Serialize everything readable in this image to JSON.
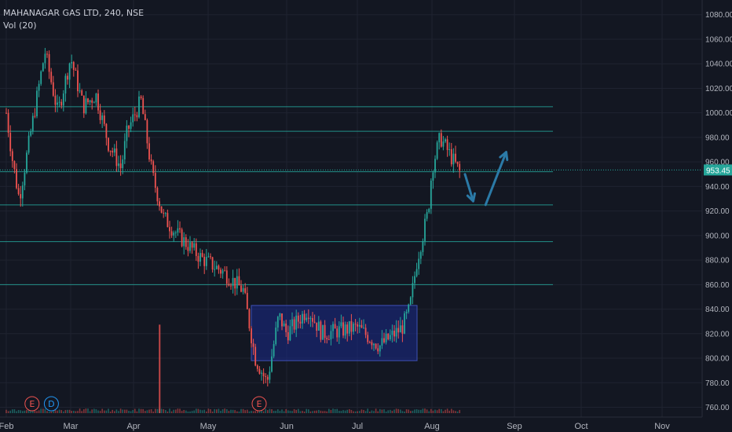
{
  "header": {
    "symbol": "MAHANAGAR GAS LTD, 240, NSE",
    "indicator": "Vol (20)"
  },
  "colors": {
    "background": "#131722",
    "grid": "#1f2330",
    "up": "#26a69a",
    "down": "#ef5350",
    "hline": "#26a69a",
    "box_fill": "#1a2a8a",
    "box_stroke": "#3f51b5",
    "arrow": "#2b7aa7",
    "axis_text": "#b2b5be",
    "price_badge": "#26a69a"
  },
  "chart_data": {
    "type": "candlestick",
    "title": "MAHANAGAR GAS LTD, 240, NSE",
    "xlabel": "",
    "ylabel": "",
    "ylim": [
      752,
      1092
    ],
    "x_ticks": [
      "Feb",
      "Mar",
      "Apr",
      "May",
      "Jun",
      "Jul",
      "Aug",
      "Sep",
      "Oct",
      "Nov"
    ],
    "y_ticks": [
      "760.00",
      "780.00",
      "800.00",
      "820.00",
      "840.00",
      "860.00",
      "880.00",
      "900.00",
      "920.00",
      "940.00",
      "960.00",
      "980.00",
      "1000.00",
      "1020.00",
      "1040.00",
      "1060.00",
      "1080.00"
    ],
    "last_price": "953.45",
    "grid": true,
    "close_path": [
      [
        "Feb",
        1000
      ],
      [
        "Feb+0.1",
        960
      ],
      [
        "Feb+0.2",
        930
      ],
      [
        "Feb+0.4",
        990
      ],
      [
        "Feb+0.6",
        1050
      ],
      [
        "Feb+0.8",
        1000
      ],
      [
        "Mar",
        1045
      ],
      [
        "Mar+0.2",
        1005
      ],
      [
        "Mar+0.4",
        1015
      ],
      [
        "Mar+0.6",
        975
      ],
      [
        "Mar+0.8",
        955
      ],
      [
        "Apr-0.1",
        985
      ],
      [
        "Apr+0.1",
        1010
      ],
      [
        "Apr+0.25",
        950
      ],
      [
        "Apr+0.4",
        915
      ],
      [
        "Apr+0.6",
        900
      ],
      [
        "May-0.1",
        882
      ],
      [
        "May+0.2",
        870
      ],
      [
        "May+0.45",
        855
      ],
      [
        "May+0.6",
        800
      ],
      [
        "May+0.75",
        780
      ],
      [
        "May+0.9",
        835
      ],
      [
        "Jun",
        820
      ],
      [
        "Jun+0.3",
        840
      ],
      [
        "Jun+0.5",
        820
      ],
      [
        "Jul",
        825
      ],
      [
        "Jul+0.3",
        810
      ],
      [
        "Jul+0.6",
        825
      ],
      [
        "Jul+0.7",
        840
      ],
      [
        "Jul+0.8",
        880
      ],
      [
        "Jul+0.95",
        920
      ],
      [
        "Aug",
        955
      ],
      [
        "Aug+0.1",
        980
      ],
      [
        "Aug+0.35",
        950
      ]
    ],
    "horizontal_levels": [
      1005,
      985,
      952,
      925,
      895,
      860
    ],
    "range_box": {
      "x_from": "May+0.55",
      "x_to": "Jul+0.8",
      "y_low": 798,
      "y_high": 843
    },
    "arrows": [
      {
        "from": [
          "Aug+0.4",
          950
        ],
        "to": [
          "Aug+0.5",
          928
        ]
      },
      {
        "from": [
          "Aug+0.65",
          925
        ],
        "to": [
          "Aug+0.9",
          968
        ]
      }
    ],
    "events": [
      {
        "label": "E",
        "x": "Feb+0.4"
      },
      {
        "label": "D",
        "x": "Feb+0.7"
      },
      {
        "label": "E",
        "x": "May+0.65"
      }
    ],
    "volume": {
      "spike_x": "Apr+0.35",
      "spike_level": 0.82
    }
  }
}
